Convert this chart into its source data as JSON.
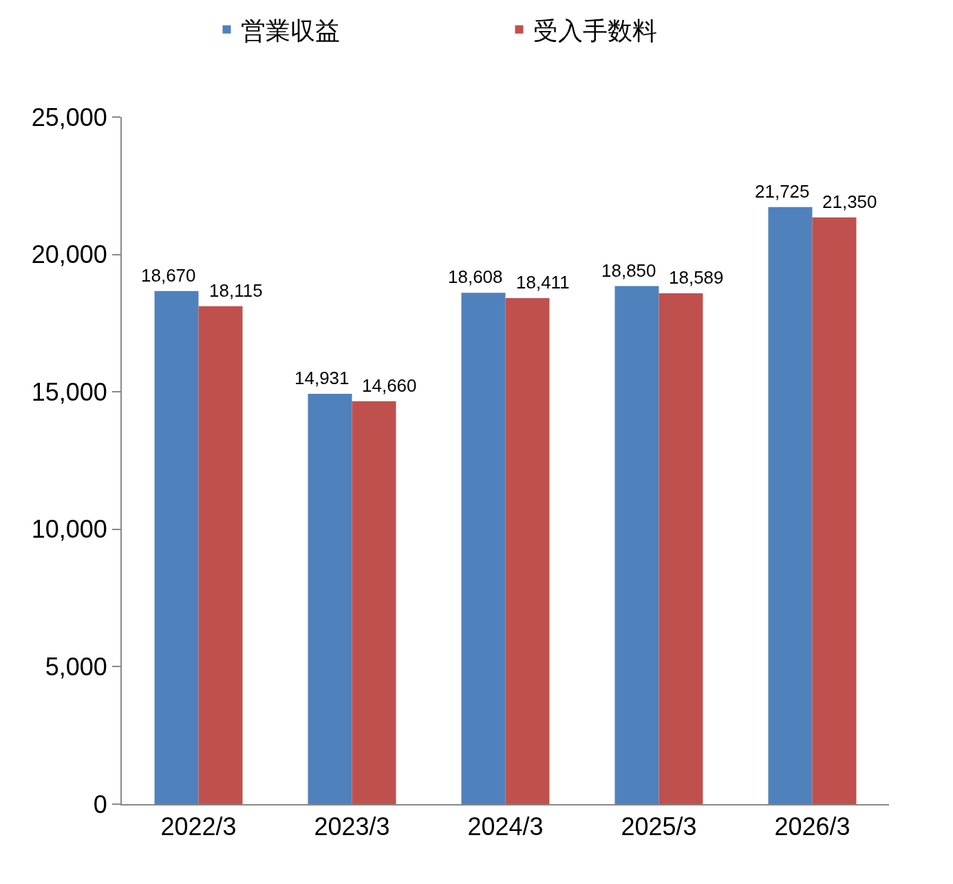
{
  "chart_data": {
    "type": "bar",
    "categories": [
      "2022/3",
      "2023/3",
      "2024/3",
      "2025/3",
      "2026/3"
    ],
    "series": [
      {
        "name": "営業収益",
        "color": "#4f81bd",
        "values": [
          18670,
          14931,
          18608,
          18850,
          21725
        ],
        "value_labels": [
          "18,670",
          "14,931",
          "18,608",
          "18,850",
          "21,725"
        ]
      },
      {
        "name": "受入手数料",
        "color": "#c0504d",
        "values": [
          18115,
          14660,
          18411,
          18589,
          21350
        ],
        "value_labels": [
          "18,115",
          "14,660",
          "18,411",
          "18,589",
          "21,350"
        ]
      }
    ],
    "ylim": [
      0,
      25000
    ],
    "yticks": [
      {
        "value": 0,
        "label": "0"
      },
      {
        "value": 5000,
        "label": "5,000"
      },
      {
        "value": 10000,
        "label": "10,000"
      },
      {
        "value": 15000,
        "label": "15,000"
      },
      {
        "value": 20000,
        "label": "20,000"
      },
      {
        "value": 25000,
        "label": "25,000"
      }
    ],
    "legend": "top"
  }
}
